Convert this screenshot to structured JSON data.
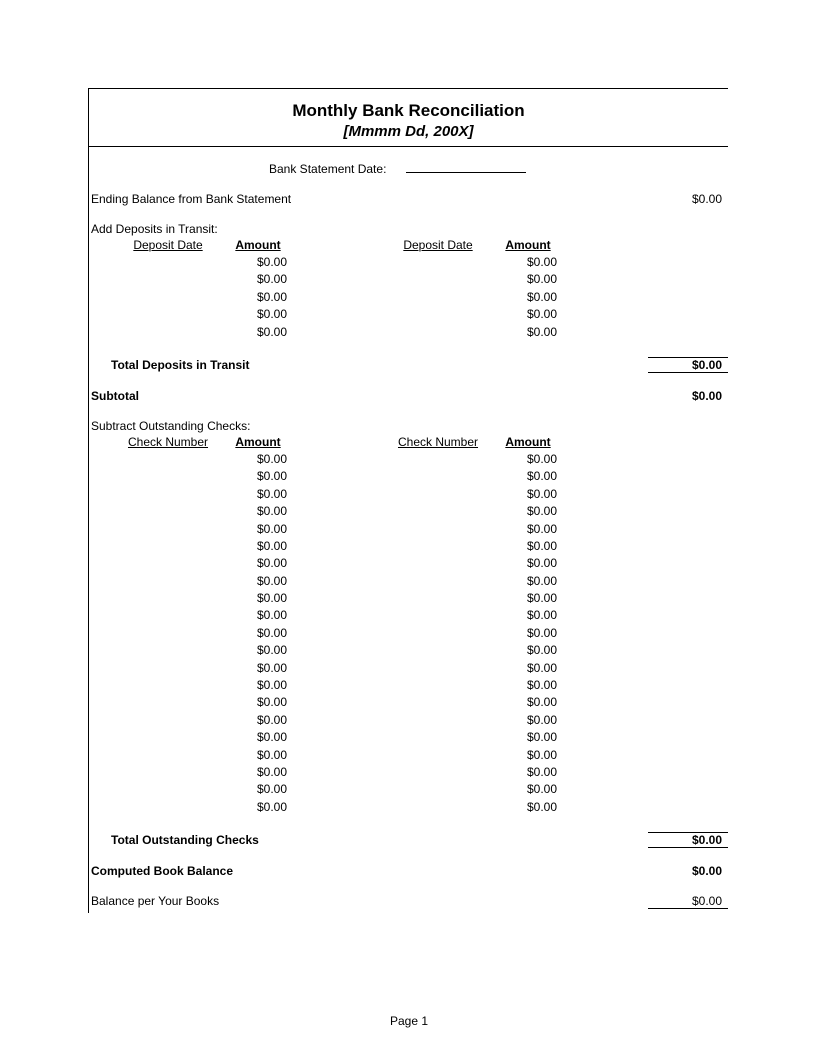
{
  "title": "Monthly Bank Reconciliation",
  "subtitle": "[Mmmm Dd, 200X]",
  "bank_statement_date_label": "Bank Statement Date:",
  "ending_balance_label": "Ending Balance from Bank Statement",
  "ending_balance_value": "$0.00",
  "deposits": {
    "header": "Add Deposits in Transit:",
    "col_key": "Deposit Date",
    "col_amt": "Amount",
    "left": [
      "$0.00",
      "$0.00",
      "$0.00",
      "$0.00",
      "$0.00"
    ],
    "right": [
      "$0.00",
      "$0.00",
      "$0.00",
      "$0.00",
      "$0.00"
    ],
    "total_label": "Total Deposits in Transit",
    "total_value": "$0.00"
  },
  "subtotal_label": "Subtotal",
  "subtotal_value": "$0.00",
  "checks": {
    "header": "Subtract Outstanding Checks:",
    "col_key": "Check Number",
    "col_amt": "Amount",
    "left": [
      "$0.00",
      "$0.00",
      "$0.00",
      "$0.00",
      "$0.00",
      "$0.00",
      "$0.00",
      "$0.00",
      "$0.00",
      "$0.00",
      "$0.00",
      "$0.00",
      "$0.00",
      "$0.00",
      "$0.00",
      "$0.00",
      "$0.00",
      "$0.00",
      "$0.00",
      "$0.00",
      "$0.00"
    ],
    "right": [
      "$0.00",
      "$0.00",
      "$0.00",
      "$0.00",
      "$0.00",
      "$0.00",
      "$0.00",
      "$0.00",
      "$0.00",
      "$0.00",
      "$0.00",
      "$0.00",
      "$0.00",
      "$0.00",
      "$0.00",
      "$0.00",
      "$0.00",
      "$0.00",
      "$0.00",
      "$0.00",
      "$0.00"
    ],
    "total_label": "Total Outstanding Checks",
    "total_value": "$0.00"
  },
  "computed_label": "Computed Book Balance",
  "computed_value": "$0.00",
  "balance_books_label": "Balance per Your Books",
  "balance_books_value": "$0.00",
  "page_number": "Page 1"
}
